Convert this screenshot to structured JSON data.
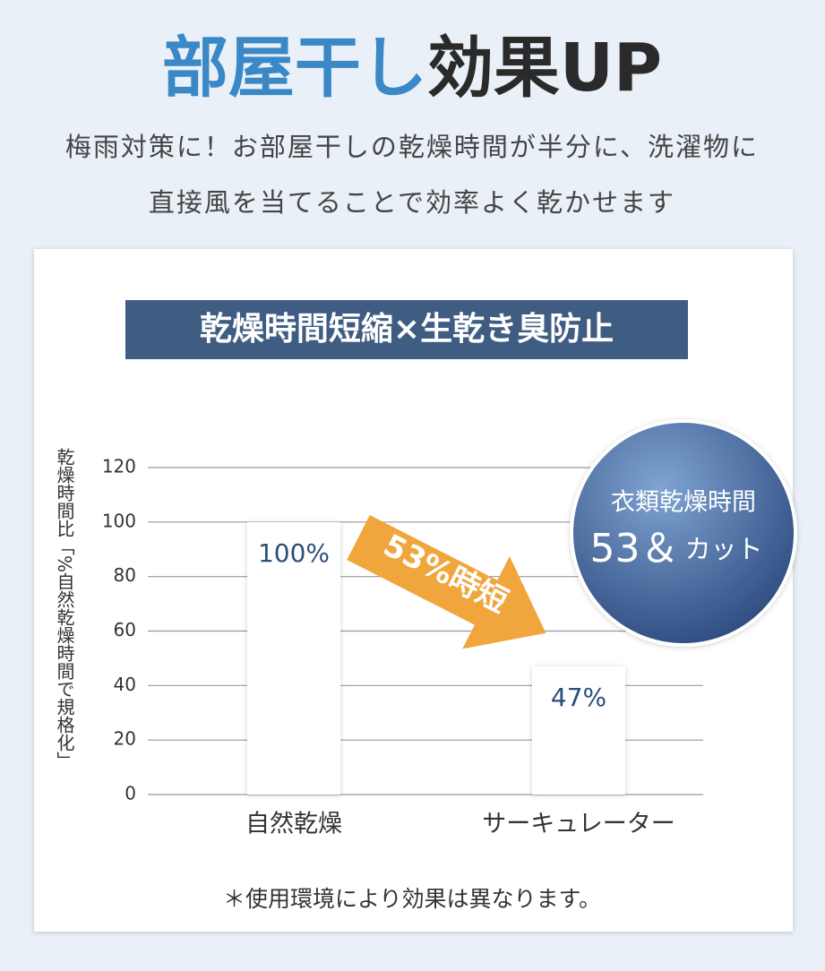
{
  "headline": [
    "部屋干し",
    "効果UP"
  ],
  "subtitle_lines": [
    "梅雨対策に！お部屋干しの乾燥時間が半分に、洗濯物に",
    "直接風を当てることで効率よく乾かせます"
  ],
  "chart_data": {
    "type": "bar",
    "title": "乾燥時間短縮×生乾き臭防止",
    "y_label": "乾燥時間比「%自然乾燥時間で規格化」",
    "categories": [
      "自然乾燥",
      "サーキュレーター"
    ],
    "values": [
      100,
      47
    ],
    "value_labels": [
      "100%",
      "47%"
    ],
    "color": "#ffffff",
    "ylim": [
      0,
      120
    ],
    "yticks": [
      0,
      20,
      40,
      60,
      80,
      100,
      120
    ],
    "grid": true,
    "annotations": {
      "arrow": "53%時短",
      "badge_line1": "衣類乾燥時間",
      "badge_big": "53＆",
      "badge_small": "カット"
    },
    "note": "＊使用環境により効果は異なります。"
  }
}
